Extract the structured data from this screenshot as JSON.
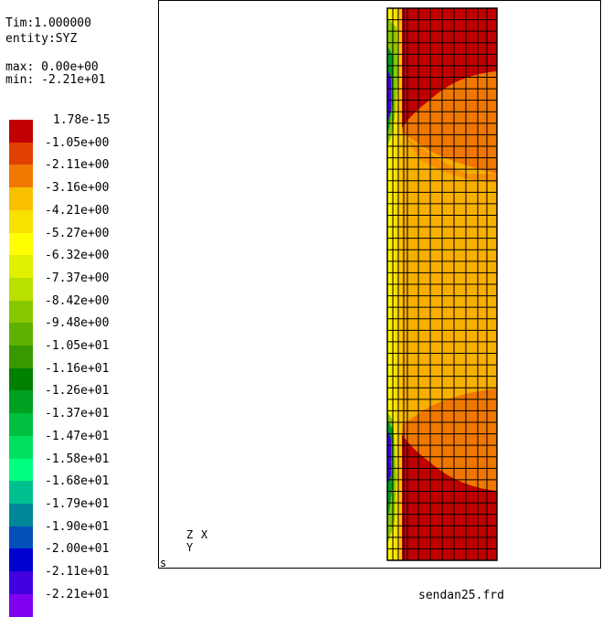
{
  "header": {
    "time": "Tim:1.000000",
    "entity": "entity:SYZ",
    "max": "max: 0.00e+00",
    "min": "min: -2.21e+01"
  },
  "legend": [
    {
      "label": "1.78e-15",
      "color": "#c00000"
    },
    {
      "label": "-1.05e+00",
      "color": "#e04000"
    },
    {
      "label": "-2.11e+00",
      "color": "#f07800"
    },
    {
      "label": "-3.16e+00",
      "color": "#f8c000"
    },
    {
      "label": "-4.21e+00",
      "color": "#f8e000"
    },
    {
      "label": "-5.27e+00",
      "color": "#ffff00"
    },
    {
      "label": "-6.32e+00",
      "color": "#e0f000"
    },
    {
      "label": "-7.37e+00",
      "color": "#b8e000"
    },
    {
      "label": "-8.42e+00",
      "color": "#88c800"
    },
    {
      "label": "-9.48e+00",
      "color": "#60b000"
    },
    {
      "label": "-1.05e+01",
      "color": "#389800"
    },
    {
      "label": "-1.16e+01",
      "color": "#008000"
    },
    {
      "label": "-1.26e+01",
      "color": "#00a020"
    },
    {
      "label": "-1.37e+01",
      "color": "#00c040"
    },
    {
      "label": "-1.47e+01",
      "color": "#00e060"
    },
    {
      "label": "-1.58e+01",
      "color": "#00ff80"
    },
    {
      "label": "-1.68e+01",
      "color": "#00c090"
    },
    {
      "label": "-1.79e+01",
      "color": "#008898"
    },
    {
      "label": "-1.90e+01",
      "color": "#0050b8"
    },
    {
      "label": "-2.00e+01",
      "color": "#0000d0"
    },
    {
      "label": "-2.11e+01",
      "color": "#4000e0"
    },
    {
      "label": "-2.21e+01",
      "color": "#8000f0"
    }
  ],
  "axes": {
    "z": "Z",
    "x": "X",
    "y": "Y",
    "origin": "s"
  },
  "filename": "sendan25.frd"
}
